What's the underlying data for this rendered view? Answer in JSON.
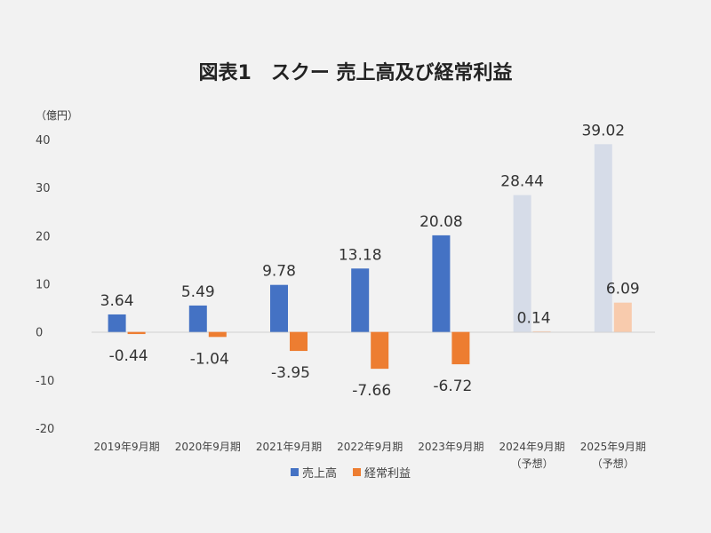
{
  "chart_data": {
    "type": "bar",
    "title": "図表1　スクー 売上高及び経常利益",
    "unit_label": "（億円）",
    "categories": [
      [
        "2019年9月期"
      ],
      [
        "2020年9月期"
      ],
      [
        "2021年9月期"
      ],
      [
        "2022年9月期"
      ],
      [
        "2023年9月期"
      ],
      [
        "2024年9月期",
        "（予想）"
      ],
      [
        "2025年9月期",
        "（予想）"
      ]
    ],
    "forecast": [
      false,
      false,
      false,
      false,
      false,
      true,
      true
    ],
    "series": [
      {
        "name": "売上高",
        "values": [
          3.64,
          5.49,
          9.78,
          13.18,
          20.08,
          28.44,
          39.02
        ],
        "value_labels": [
          "3.64",
          "5.49",
          "9.78",
          "13.18",
          "20.08",
          "28.44",
          "39.02"
        ],
        "color": "#4472c4",
        "forecast_color": "#d6dce8"
      },
      {
        "name": "経常利益",
        "values": [
          -0.44,
          -1.04,
          -3.95,
          -7.66,
          -6.72,
          0.14,
          6.09
        ],
        "value_labels": [
          "-0.44",
          "-1.04",
          "-3.95",
          "-7.66",
          "-6.72",
          "0.14",
          "6.09"
        ],
        "color": "#ed7d31",
        "forecast_color": "#f8cbad"
      }
    ],
    "yticks": [
      40,
      30,
      20,
      10,
      0,
      -10,
      -20
    ],
    "ylim": [
      -20,
      40
    ],
    "grid": false,
    "legend_position": "bottom"
  }
}
